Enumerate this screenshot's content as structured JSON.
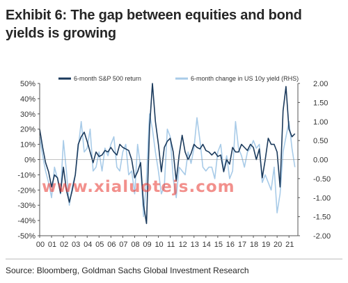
{
  "title": "Exhibit 6: The gap between equities and bond yields is growing",
  "source": "Source: Bloomberg, Goldman Sachs Global Investment Research",
  "watermark": "www.xialuotejs.com",
  "colors": {
    "sp500": "#1b3a5c",
    "us10y": "#a8cbe8",
    "axis": "#555555"
  },
  "chart_data": {
    "type": "line",
    "x_tick_labels": [
      "00",
      "01",
      "02",
      "03",
      "04",
      "05",
      "06",
      "07",
      "08",
      "09",
      "10",
      "11",
      "12",
      "13",
      "14",
      "15",
      "16",
      "17",
      "18",
      "19",
      "20",
      "21"
    ],
    "xlim": [
      2000.0,
      2021.75
    ],
    "ylim_left": [
      -50,
      50
    ],
    "ylim_right": [
      -2.0,
      2.0
    ],
    "yticks_left": [
      "50%",
      "40%",
      "30%",
      "20%",
      "10%",
      "0%",
      "-10%",
      "-20%",
      "-30%",
      "-40%",
      "-50%"
    ],
    "yticks_right": [
      "2.00",
      "1.50",
      "1.00",
      "0.50",
      "0.00",
      "-0.50",
      "-1.00",
      "-1.50",
      "-2.00"
    ],
    "legend_position": "top",
    "grid": false,
    "series": [
      {
        "name": "6-month S&P 500 return",
        "axis": "left",
        "x": [
          2000.0,
          2000.25,
          2000.5,
          2000.75,
          2001.0,
          2001.25,
          2001.5,
          2001.75,
          2002.0,
          2002.25,
          2002.5,
          2002.75,
          2003.0,
          2003.25,
          2003.5,
          2003.75,
          2004.0,
          2004.25,
          2004.5,
          2004.75,
          2005.0,
          2005.25,
          2005.5,
          2005.75,
          2006.0,
          2006.25,
          2006.5,
          2006.75,
          2007.0,
          2007.25,
          2007.5,
          2007.75,
          2008.0,
          2008.25,
          2008.5,
          2008.75,
          2009.0,
          2009.25,
          2009.5,
          2009.75,
          2010.0,
          2010.25,
          2010.5,
          2010.75,
          2011.0,
          2011.25,
          2011.5,
          2011.75,
          2012.0,
          2012.25,
          2012.5,
          2012.75,
          2013.0,
          2013.25,
          2013.5,
          2013.75,
          2014.0,
          2014.25,
          2014.5,
          2014.75,
          2015.0,
          2015.25,
          2015.5,
          2015.75,
          2016.0,
          2016.25,
          2016.5,
          2016.75,
          2017.0,
          2017.25,
          2017.5,
          2017.75,
          2018.0,
          2018.25,
          2018.5,
          2018.75,
          2019.0,
          2019.25,
          2019.5,
          2019.75,
          2020.0,
          2020.25,
          2020.5,
          2020.75,
          2021.0,
          2021.25,
          2021.5
        ],
        "values": [
          20,
          8,
          -2,
          -8,
          -18,
          -10,
          -12,
          -22,
          -5,
          -20,
          -28,
          -20,
          -10,
          10,
          15,
          18,
          12,
          5,
          -2,
          5,
          2,
          3,
          6,
          5,
          8,
          5,
          3,
          10,
          8,
          7,
          6,
          0,
          -12,
          -8,
          -2,
          -30,
          -42,
          20,
          50,
          25,
          10,
          -8,
          8,
          12,
          14,
          5,
          -14,
          3,
          16,
          5,
          0,
          4,
          10,
          8,
          7,
          10,
          6,
          5,
          3,
          5,
          2,
          3,
          -8,
          0,
          -3,
          8,
          5,
          5,
          10,
          8,
          6,
          10,
          8,
          0,
          7,
          -12,
          0,
          14,
          10,
          10,
          5,
          -18,
          32,
          48,
          20,
          15,
          17
        ]
      },
      {
        "name": "6-month change in US 10y yield (RHS)",
        "axis": "right",
        "x": [
          2000.0,
          2000.25,
          2000.5,
          2000.75,
          2001.0,
          2001.25,
          2001.5,
          2001.75,
          2002.0,
          2002.25,
          2002.5,
          2002.75,
          2003.0,
          2003.25,
          2003.5,
          2003.75,
          2004.0,
          2004.25,
          2004.5,
          2004.75,
          2005.0,
          2005.25,
          2005.5,
          2005.75,
          2006.0,
          2006.25,
          2006.5,
          2006.75,
          2007.0,
          2007.25,
          2007.5,
          2007.75,
          2008.0,
          2008.25,
          2008.5,
          2008.75,
          2009.0,
          2009.25,
          2009.5,
          2009.75,
          2010.0,
          2010.25,
          2010.5,
          2010.75,
          2011.0,
          2011.25,
          2011.5,
          2011.75,
          2012.0,
          2012.25,
          2012.5,
          2012.75,
          2013.0,
          2013.25,
          2013.5,
          2013.75,
          2014.0,
          2014.25,
          2014.5,
          2014.75,
          2015.0,
          2015.25,
          2015.5,
          2015.75,
          2016.0,
          2016.25,
          2016.5,
          2016.75,
          2017.0,
          2017.25,
          2017.5,
          2017.75,
          2018.0,
          2018.25,
          2018.5,
          2018.75,
          2019.0,
          2019.25,
          2019.5,
          2019.75,
          2020.0,
          2020.25,
          2020.5,
          2020.75,
          2021.0,
          2021.25,
          2021.5
        ],
        "values": [
          0.6,
          0.1,
          -0.3,
          -0.6,
          -1.0,
          -0.2,
          -0.5,
          -0.9,
          0.5,
          -0.3,
          -1.2,
          -0.7,
          -0.4,
          0.3,
          1.0,
          0.2,
          0.3,
          0.8,
          -0.3,
          -0.2,
          0.2,
          -0.3,
          0.3,
          0.1,
          0.4,
          0.6,
          -0.2,
          -0.3,
          0.2,
          0.4,
          -0.4,
          -0.3,
          -0.9,
          0.4,
          -0.2,
          -1.5,
          -0.5,
          1.2,
          0.8,
          0.2,
          -0.3,
          -0.9,
          -0.7,
          0.8,
          0.6,
          -0.5,
          -1.0,
          -0.2,
          -0.3,
          -0.4,
          0.2,
          -0.1,
          0.3,
          1.1,
          0.5,
          -0.2,
          -0.3,
          -0.2,
          -0.2,
          -0.5,
          0.2,
          0.4,
          -0.3,
          0.1,
          -0.5,
          -0.3,
          1.0,
          0.3,
          0.1,
          -0.2,
          0.2,
          0.3,
          0.5,
          0.3,
          0.4,
          -0.6,
          -0.4,
          -0.6,
          -0.8,
          -0.2,
          -1.4,
          -0.9,
          0.2,
          0.6,
          1.0,
          0.3,
          -0.2
        ]
      }
    ]
  }
}
